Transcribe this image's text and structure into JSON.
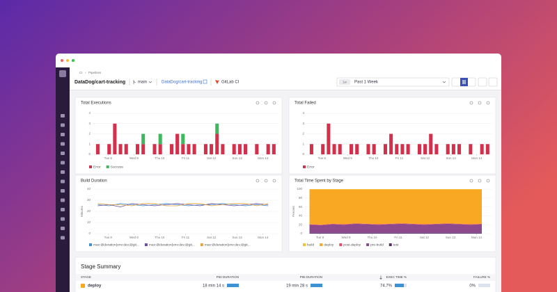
{
  "header": {
    "breadcrumb": [
      "CI",
      "Pipelines"
    ],
    "title": "DataDog/cart-tracking",
    "branch": "main",
    "repo_link": "DataDog/cart-tracking",
    "provider": "GitLab CI",
    "time_badge": "1w",
    "time_range": "Past 1 Week"
  },
  "chart_data": [
    {
      "type": "bar",
      "title": "Total Executions",
      "x": [
        7.6,
        7.82,
        8.04,
        8.26,
        8.48,
        8.7,
        8.92,
        9.14,
        9.36,
        9.58,
        9.8,
        10.02,
        10.24,
        10.46,
        10.68,
        10.9,
        11.12,
        11.34,
        11.56,
        11.78,
        12.0,
        12.22,
        12.44,
        12.66,
        12.88,
        13.1,
        13.32,
        13.54,
        13.76,
        13.98,
        14.2,
        14.42
      ],
      "series": [
        {
          "name": "Error",
          "color": "#d3304c",
          "values": [
            1,
            0,
            1,
            3,
            1,
            1,
            0,
            1,
            1,
            0,
            1,
            1,
            0,
            1,
            2,
            1,
            1,
            1,
            0,
            1,
            1,
            2,
            1,
            0,
            1,
            1,
            1,
            0,
            1,
            0,
            1,
            1
          ]
        },
        {
          "name": "Success",
          "color": "#3fb75f",
          "values": [
            0,
            0,
            0,
            0,
            0,
            0,
            0,
            0,
            1,
            0,
            0,
            1,
            0,
            0,
            0,
            1,
            0,
            0,
            0,
            0,
            0,
            1,
            0,
            0,
            0,
            0,
            0,
            0,
            0,
            0,
            0,
            0
          ]
        }
      ],
      "xlim": [
        7.4,
        14.6
      ],
      "xticks": [
        {
          "value": 8,
          "label": "Tue 8"
        },
        {
          "value": 9,
          "label": "Wed 9"
        },
        {
          "value": 10,
          "label": "Thu 10"
        },
        {
          "value": 11,
          "label": "Fri 11"
        },
        {
          "value": 12,
          "label": "Sat 12"
        },
        {
          "value": 13,
          "label": "Sun 13"
        },
        {
          "value": 14,
          "label": "Mon 14"
        }
      ],
      "ylim": [
        0,
        4
      ],
      "yticks": [
        0,
        1,
        2,
        3,
        4
      ]
    },
    {
      "type": "bar",
      "title": "Total Failed",
      "x": [
        7.6,
        7.82,
        8.04,
        8.26,
        8.48,
        8.7,
        8.92,
        9.14,
        9.36,
        9.58,
        9.8,
        10.02,
        10.24,
        10.46,
        10.68,
        10.9,
        11.12,
        11.34,
        11.56,
        11.78,
        12.0,
        12.22,
        12.44,
        12.66,
        12.88,
        13.1,
        13.32,
        13.54,
        13.76,
        13.98,
        14.2,
        14.42
      ],
      "series": [
        {
          "name": "Error",
          "color": "#d3304c",
          "values": [
            1,
            0,
            1,
            3,
            1,
            1,
            0,
            1,
            1,
            0,
            1,
            1,
            0,
            1,
            2,
            1,
            1,
            1,
            0,
            1,
            1,
            2,
            1,
            0,
            1,
            1,
            1,
            0,
            1,
            0,
            1,
            1
          ]
        }
      ],
      "xlim": [
        7.4,
        14.6
      ],
      "xticks": [
        {
          "value": 8,
          "label": "Tue 8"
        },
        {
          "value": 9,
          "label": "Wed 9"
        },
        {
          "value": 10,
          "label": "Thu 10"
        },
        {
          "value": 11,
          "label": "Fri 11"
        },
        {
          "value": 12,
          "label": "Sat 12"
        },
        {
          "value": 13,
          "label": "Sun 13"
        },
        {
          "value": 14,
          "label": "Mon 14"
        }
      ],
      "ylim": [
        0,
        4
      ],
      "yticks": [
        0,
        1,
        2,
        3,
        4
      ]
    },
    {
      "type": "line",
      "title": "Build Duration",
      "y_label": "Minutes",
      "x": [
        7.6,
        8.04,
        8.48,
        8.92,
        9.36,
        9.8,
        10.24,
        10.68,
        11.12,
        11.56,
        12.0,
        12.44,
        12.88,
        13.32,
        13.76,
        14.2
      ],
      "series": [
        {
          "name": "max:@duration{env:dev,@git...",
          "color": "#3c92d4",
          "values": [
            26,
            25,
            27,
            26,
            25,
            26,
            27,
            26,
            25,
            26,
            26,
            27,
            26,
            25,
            26,
            25
          ]
        },
        {
          "name": "max:@duration{env:dev,@git...",
          "color": "#6a4fa0",
          "values": [
            25,
            26,
            24,
            27,
            26,
            25,
            26,
            27,
            26,
            25,
            27,
            26,
            25,
            26,
            27,
            26
          ]
        },
        {
          "name": "max:@duration{env:dev,@git...",
          "color": "#e8a33a",
          "values": [
            27,
            26,
            26,
            25,
            27,
            27,
            25,
            25,
            27,
            27,
            25,
            26,
            27,
            27,
            25,
            27
          ]
        }
      ],
      "xlim": [
        7.4,
        14.6
      ],
      "xticks": [
        {
          "value": 8,
          "label": "Tue 8"
        },
        {
          "value": 9,
          "label": "Wed 9"
        },
        {
          "value": 10,
          "label": "Thu 10"
        },
        {
          "value": 11,
          "label": "Fri 11"
        },
        {
          "value": 12,
          "label": "Sat 12"
        },
        {
          "value": 13,
          "label": "Sun 13"
        },
        {
          "value": 14,
          "label": "Mon 14"
        }
      ],
      "ylim": [
        0,
        40
      ],
      "yticks": [
        0,
        10,
        20,
        30,
        40
      ]
    },
    {
      "type": "area",
      "title": "Total Time Spent by Stage",
      "y_label": "Percent",
      "x": [
        7.6,
        8.04,
        8.48,
        8.92,
        9.36,
        9.8,
        10.24,
        10.68,
        11.12,
        11.56,
        12.0,
        12.44,
        12.88,
        13.32,
        13.76,
        14.2
      ],
      "series": [
        {
          "name": "build",
          "color": "#f6c02f",
          "values": [
            1,
            1,
            1,
            1,
            1,
            1,
            1,
            1,
            1,
            1,
            1,
            1,
            1,
            1,
            1,
            1
          ]
        },
        {
          "name": "deploy",
          "color": "#f8a823",
          "values": [
            78,
            79,
            77,
            78,
            76,
            77,
            78,
            77,
            76,
            77,
            78,
            77,
            76,
            77,
            78,
            77
          ]
        },
        {
          "name": "post-deploy",
          "color": "#e0506a",
          "values": [
            1,
            1,
            1,
            1,
            1,
            1,
            1,
            1,
            1,
            1,
            1,
            1,
            1,
            1,
            1,
            1
          ]
        },
        {
          "name": "pre-build",
          "color": "#8c4a8c",
          "values": [
            18,
            17,
            19,
            18,
            20,
            19,
            18,
            19,
            20,
            19,
            18,
            19,
            20,
            19,
            18,
            19
          ]
        },
        {
          "name": "test",
          "color": "#5a2d6e",
          "values": [
            2,
            2,
            2,
            2,
            2,
            2,
            2,
            2,
            2,
            2,
            2,
            2,
            2,
            2,
            2,
            2
          ]
        }
      ],
      "xlim": [
        7.4,
        14.6
      ],
      "xticks": [
        {
          "value": 8,
          "label": "Tue 8"
        },
        {
          "value": 9,
          "label": "Wed 9"
        },
        {
          "value": 10,
          "label": "Thu 10"
        },
        {
          "value": 11,
          "label": "Fri 11"
        },
        {
          "value": 12,
          "label": "Sat 12"
        },
        {
          "value": 13,
          "label": "Sun 13"
        },
        {
          "value": 14,
          "label": "Mon 14"
        }
      ],
      "ylim": [
        0,
        100
      ],
      "yticks": [
        0,
        20,
        40,
        60,
        80,
        100
      ]
    }
  ],
  "table": {
    "title": "Stage Summary",
    "headers": [
      "STAGE",
      "P50 DURATION",
      "P95 DURATION",
      "EXEC TIME %",
      "FAILURE %"
    ],
    "rows": [
      [
        "deploy",
        "18 min 14 s",
        "19 min 28 s",
        "74.7%",
        "0%"
      ]
    ]
  }
}
